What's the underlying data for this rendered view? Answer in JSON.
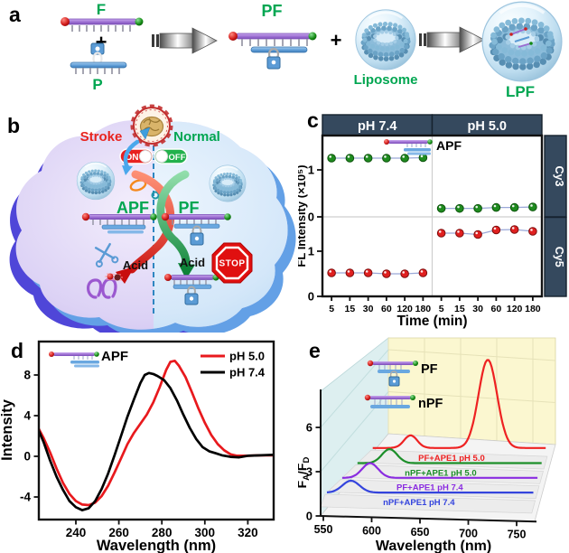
{
  "figure": {
    "panel_a": {
      "letter": "a",
      "f_label": "F",
      "p_label": "P",
      "plus": "+",
      "pf_label": "PF",
      "liposome_label": "Liposome",
      "lpf_label": "LPF"
    },
    "panel_b": {
      "letter": "b",
      "stroke_label": "Stroke",
      "normal_label": "Normal",
      "on_label": "ON",
      "off_label": "OFF",
      "apf_label": "APF",
      "pf_label": "PF",
      "acid_label": "Acid",
      "stop_label": "STOP"
    },
    "panel_c": {
      "letter": "c"
    },
    "panel_d": {
      "letter": "d"
    },
    "panel_e": {
      "letter": "e"
    }
  },
  "colors": {
    "label_green": "#00a651",
    "stroke_red": "#e8241f",
    "header_navy": "#35495e",
    "cy3_green": "#1f8b1f",
    "cy5_red": "#e02020",
    "ph5_red": "#e8191d",
    "ph74_black": "#000000",
    "waterfall_red": "#ee2222",
    "waterfall_green": "#1d8f2a",
    "waterfall_purple": "#8a2ce0",
    "waterfall_blue": "#3444dd"
  },
  "chart_data": [
    {
      "id": "c",
      "type": "scatter",
      "col_facets": [
        "pH 7.4",
        "pH 5.0"
      ],
      "row_facets": [
        "Cy3",
        "Cy5"
      ],
      "categories": [
        "5",
        "15",
        "30",
        "60",
        "120",
        "180"
      ],
      "xlabel": "Time (min)",
      "ylabel": "FL Intensity (×10⁵)",
      "legend_label": "APF",
      "yticks": [
        0,
        1
      ],
      "ylim": [
        0,
        1.73
      ],
      "series": [
        {
          "name": "Cy3 pH 7.4",
          "row": 0,
          "col": 0,
          "color": "#1f8b1f",
          "values": [
            1.25,
            1.25,
            1.25,
            1.25,
            1.25,
            1.26
          ]
        },
        {
          "name": "Cy3 pH 5.0",
          "row": 0,
          "col": 1,
          "color": "#1f8b1f",
          "values": [
            0.18,
            0.18,
            0.18,
            0.2,
            0.2,
            0.21
          ]
        },
        {
          "name": "Cy5 pH 7.4",
          "row": 1,
          "col": 0,
          "color": "#e02020",
          "values": [
            0.52,
            0.52,
            0.52,
            0.5,
            0.5,
            0.52
          ]
        },
        {
          "name": "Cy5 pH 5.0",
          "row": 1,
          "col": 1,
          "color": "#e02020",
          "values": [
            1.4,
            1.4,
            1.37,
            1.47,
            1.48,
            1.44
          ]
        }
      ]
    },
    {
      "id": "d",
      "type": "line",
      "xlabel": "Wavelength (nm)",
      "ylabel": "Intensity",
      "legend_label": "APF",
      "xlim": [
        222,
        332
      ],
      "ylim": [
        -6.2,
        11.3
      ],
      "xticks": [
        240,
        260,
        280,
        300,
        320
      ],
      "yticks": [
        -4,
        0,
        4,
        8
      ],
      "series": [
        {
          "name": "pH 5.0",
          "color": "#e8191d",
          "points": [
            [
              222,
              3.0
            ],
            [
              225,
              1.8
            ],
            [
              228,
              0.4
            ],
            [
              231,
              -1.2
            ],
            [
              234,
              -2.6
            ],
            [
              237,
              -3.7
            ],
            [
              240,
              -4.4
            ],
            [
              243,
              -4.75
            ],
            [
              246,
              -4.8
            ],
            [
              249,
              -4.55
            ],
            [
              252,
              -3.9
            ],
            [
              255,
              -2.9
            ],
            [
              258,
              -1.6
            ],
            [
              261,
              -0.2
            ],
            [
              264,
              1.2
            ],
            [
              267,
              2.3
            ],
            [
              270,
              3.2
            ],
            [
              273,
              4.1
            ],
            [
              276,
              5.3
            ],
            [
              279,
              6.8
            ],
            [
              282,
              8.5
            ],
            [
              284,
              9.3
            ],
            [
              286,
              9.4
            ],
            [
              288,
              8.9
            ],
            [
              291,
              7.8
            ],
            [
              294,
              6.3
            ],
            [
              297,
              4.7
            ],
            [
              300,
              3.3
            ],
            [
              303,
              2.1
            ],
            [
              306,
              1.2
            ],
            [
              309,
              0.6
            ],
            [
              312,
              0.2
            ],
            [
              315,
              0.05
            ],
            [
              320,
              0.05
            ],
            [
              326,
              0.1
            ],
            [
              332,
              0.1
            ]
          ]
        },
        {
          "name": "pH 7.4",
          "color": "#000000",
          "points": [
            [
              222,
              2.9
            ],
            [
              225,
              1.4
            ],
            [
              228,
              -0.4
            ],
            [
              231,
              -2.0
            ],
            [
              234,
              -3.3
            ],
            [
              237,
              -4.4
            ],
            [
              240,
              -5.0
            ],
            [
              243,
              -5.3
            ],
            [
              246,
              -5.1
            ],
            [
              249,
              -4.4
            ],
            [
              252,
              -3.2
            ],
            [
              255,
              -1.7
            ],
            [
              258,
              0.1
            ],
            [
              261,
              2.0
            ],
            [
              264,
              3.9
            ],
            [
              267,
              5.6
            ],
            [
              270,
              7.2
            ],
            [
              272,
              8.0
            ],
            [
              274,
              8.2
            ],
            [
              276,
              8.1
            ],
            [
              278,
              7.9
            ],
            [
              281,
              7.5
            ],
            [
              284,
              6.7
            ],
            [
              287,
              5.5
            ],
            [
              290,
              4.1
            ],
            [
              293,
              2.8
            ],
            [
              296,
              1.7
            ],
            [
              299,
              0.9
            ],
            [
              302,
              0.5
            ],
            [
              305,
              0.3
            ],
            [
              308,
              0.1
            ],
            [
              312,
              -0.05
            ],
            [
              316,
              -0.1
            ],
            [
              320,
              0.05
            ],
            [
              326,
              0.1
            ],
            [
              332,
              0.15
            ]
          ]
        }
      ]
    },
    {
      "id": "e",
      "type": "waterfall3d",
      "xlabel": "Wavelength (nm)",
      "ylabel": "FA/FD",
      "ylabel_rich": [
        [
          "F",
          "n"
        ],
        [
          "A",
          "s"
        ],
        [
          "/F",
          "n"
        ],
        [
          "D",
          "s"
        ]
      ],
      "xlim": [
        550,
        775
      ],
      "xticks": [
        550,
        600,
        650,
        700,
        750
      ],
      "yticks": [
        0,
        3,
        6
      ],
      "legend": [
        "PF",
        "nPF"
      ],
      "series": [
        {
          "name": "nPF+APE1 pH 7.4",
          "color": "#3444dd",
          "baseline": 0.12,
          "peaks": [
            {
              "center": 578,
              "height": 0.85,
              "width": 13
            }
          ]
        },
        {
          "name": "PF+APE1 pH 7.4",
          "color": "#8a2ce0",
          "baseline": 0.12,
          "peaks": [
            {
              "center": 584,
              "height": 1.05,
              "width": 13
            }
          ]
        },
        {
          "name": "nPF+APE1 pH 5.0",
          "color": "#1d8f2a",
          "baseline": 0.12,
          "peaks": [
            {
              "center": 591,
              "height": 1.0,
              "width": 13
            }
          ]
        },
        {
          "name": "PF+APE1 pH 5.0",
          "color": "#ee2222",
          "baseline": 0.15,
          "peaks": [
            {
              "center": 601,
              "height": 0.9,
              "width": 12
            },
            {
              "center": 701,
              "height": 6.3,
              "width": 17
            }
          ]
        }
      ]
    }
  ]
}
